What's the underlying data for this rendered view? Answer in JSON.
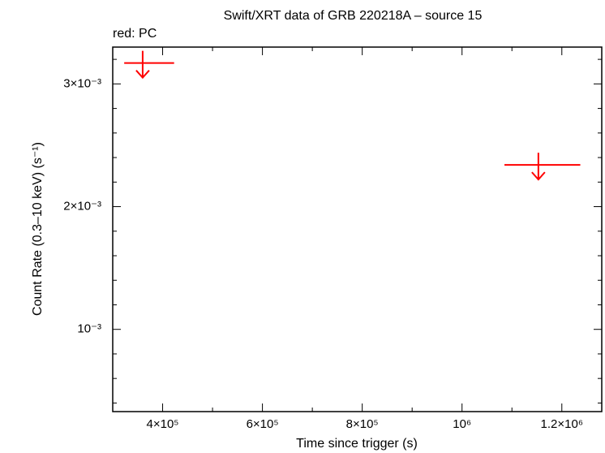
{
  "chart_data": {
    "type": "upper-limit",
    "title": "Swift/XRT data of GRB 220218A – source 15",
    "annotation": "red: PC",
    "x_label": "Time since trigger (s)",
    "y_label": "Count Rate (0.3–10 keV) (s⁻¹)",
    "xlim": [
      300000,
      1280000
    ],
    "ylim": [
      0.00033,
      0.0033
    ],
    "xticks": [
      {
        "value": 400000,
        "label": "4×10⁵"
      },
      {
        "value": 600000,
        "label": "6×10⁵"
      },
      {
        "value": 800000,
        "label": "8×10⁵"
      },
      {
        "value": 1000000,
        "label": "10⁶"
      },
      {
        "value": 1200000,
        "label": "1.2×10⁶"
      }
    ],
    "yticks": [
      {
        "value": 0.001,
        "label": "10⁻³"
      },
      {
        "value": 0.002,
        "label": "2×10⁻³"
      },
      {
        "value": 0.003,
        "label": "3×10⁻³"
      }
    ],
    "xminor_ticks": [
      500000,
      700000,
      900000,
      1100000
    ],
    "yminor_ticks": [
      0.0004,
      0.0006,
      0.0008,
      0.0012,
      0.0014,
      0.0016,
      0.0018,
      0.0022,
      0.0024,
      0.0026,
      0.0028,
      0.0032
    ],
    "series": [
      {
        "color": "#ff0000",
        "upper_limit": true,
        "x": [
          360000,
          1153000
        ],
        "x_err_minus": [
          37000,
          68000
        ],
        "x_err_plus": [
          63000,
          84000
        ],
        "values": [
          0.00317,
          0.00234
        ]
      }
    ]
  }
}
